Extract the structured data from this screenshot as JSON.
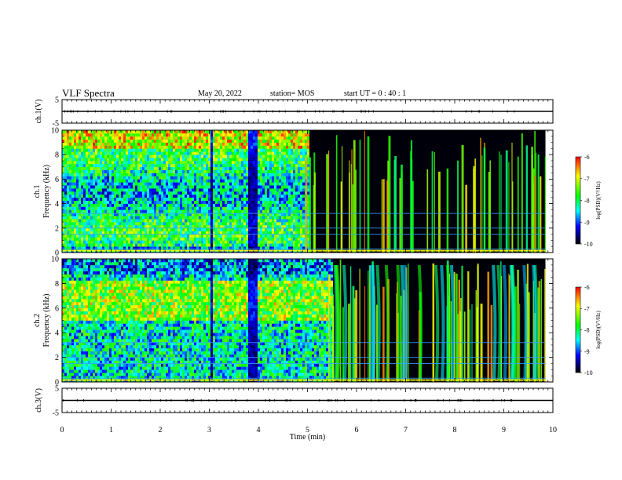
{
  "header": {
    "title": "VLF Spectra",
    "date": "May 20, 2022",
    "station": "station= MOS",
    "start": "start  UT  =   0 : 40 : 1"
  },
  "colorbar": {
    "label": "log(PSD)(V²/Hz)",
    "ticks": [
      "-6",
      "-7",
      "-8",
      "-9",
      "-10"
    ],
    "colors": [
      "#ff0000",
      "#ffff00",
      "#00ff00",
      "#00ffff",
      "#0000ff",
      "#000000"
    ]
  },
  "chart_data": [
    {
      "type": "line",
      "name": "ch.1 waveform",
      "ylabel": "ch.1(V)",
      "ylim": [
        -5,
        5
      ],
      "yticks": [
        "5",
        "-5"
      ],
      "xlim": [
        0,
        10
      ],
      "x": [
        0,
        10
      ],
      "y": [
        0,
        0
      ]
    },
    {
      "type": "heatmap",
      "ylabel": "ch.1\nFrequency (kHz)",
      "xlabel": "",
      "ylim": [
        0,
        10
      ],
      "yticks": [
        "0",
        "2",
        "4",
        "6",
        "8",
        "10"
      ],
      "xlim": [
        0,
        10
      ],
      "data_end_min": 9.85,
      "colorscale": {
        "min": -10,
        "max": -6,
        "label": "log(PSD)(V²/Hz)"
      },
      "notes": "broadband noise 0–5 min (strongest 5.5–9.5 kHz, gaps near 3.0 and 3.8–4.0 min); isolated spherics after 5 min; persistent lines near 0.3, 1.5, 2.0, 3.2 kHz"
    },
    {
      "type": "heatmap",
      "ylabel": "ch.2\nFrequency (kHz)",
      "ylim": [
        0,
        10
      ],
      "yticks": [
        "0",
        "2",
        "4",
        "6",
        "8",
        "10"
      ],
      "xlim": [
        0,
        10
      ],
      "data_end_min": 9.85,
      "colorscale": {
        "min": -10,
        "max": -6,
        "label": "log(PSD)(V²/Hz)"
      },
      "notes": "broadband noise 0–5.5 min (strongest 5–8 kHz); spherics with dispersion tails after 5.5 min"
    },
    {
      "type": "line",
      "name": "ch.3 waveform",
      "ylabel": "ch.3(V)",
      "ylim": [
        -5,
        5
      ],
      "yticks": [
        "5",
        "-5"
      ],
      "xlim": [
        0,
        10
      ],
      "xlabel": "Time  (min)",
      "xticks": [
        "0",
        "1",
        "2",
        "3",
        "4",
        "5",
        "6",
        "7",
        "8",
        "9",
        "10"
      ],
      "x": [
        0,
        10
      ],
      "y": [
        0,
        0
      ]
    }
  ]
}
